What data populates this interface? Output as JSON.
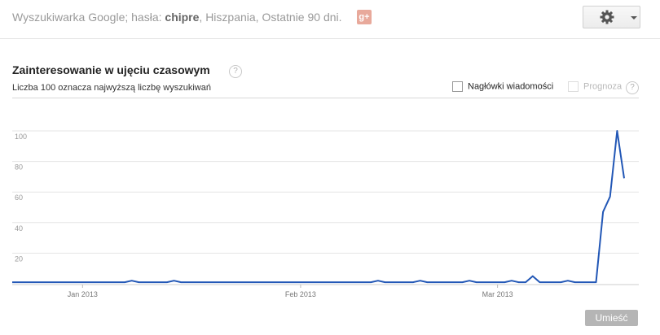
{
  "header": {
    "query_prefix": "Wyszukiwarka Google; hasła: ",
    "query_term": "chipre",
    "query_suffix": ", Hiszpania, Ostatnie 90 dni.",
    "gplus_label": "g+",
    "settings_icon": "gear-icon"
  },
  "section": {
    "title": "Zainteresowanie w ujęciu czasowym",
    "subtitle": "Liczba 100 oznacza najwyższą liczbę wyszukiwań",
    "help_label": "?",
    "news_headlines_label": "Nagłówki wiadomości",
    "forecast_label": "Prognoza"
  },
  "footer": {
    "embed_label": "Umieść"
  },
  "colors": {
    "line": "#2257b6",
    "grid": "#e6e6e6",
    "button": "#b5b5b5"
  },
  "chart_data": {
    "type": "line",
    "title": "",
    "xlabel": "",
    "ylabel": "",
    "ylim": [
      0,
      100
    ],
    "yticks": [
      20,
      40,
      60,
      80,
      100
    ],
    "xticks": [
      {
        "label": "Jan 2013",
        "index": 10
      },
      {
        "label": "Feb 2013",
        "index": 41
      },
      {
        "label": "Mar 2013",
        "index": 69
      }
    ],
    "grid": true,
    "series": [
      {
        "values": [
          1,
          1,
          1,
          1,
          1,
          1,
          1,
          1,
          1,
          1,
          1,
          1,
          1,
          1,
          1,
          1,
          1,
          2,
          1,
          1,
          1,
          1,
          1,
          2,
          1,
          1,
          1,
          1,
          1,
          1,
          1,
          1,
          1,
          1,
          1,
          1,
          1,
          1,
          1,
          1,
          1,
          1,
          1,
          1,
          1,
          1,
          1,
          1,
          1,
          1,
          1,
          1,
          2,
          1,
          1,
          1,
          1,
          1,
          2,
          1,
          1,
          1,
          1,
          1,
          1,
          2,
          1,
          1,
          1,
          1,
          1,
          2,
          1,
          1,
          5,
          1,
          1,
          1,
          1,
          2,
          1,
          1,
          1,
          1,
          47,
          57,
          100,
          69
        ]
      }
    ]
  }
}
